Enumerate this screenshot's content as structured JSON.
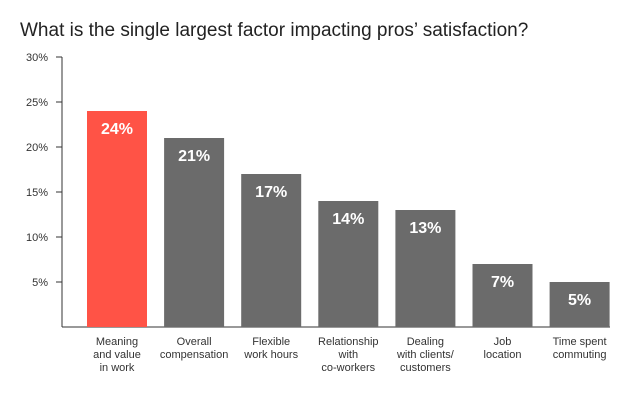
{
  "chart_data": {
    "type": "bar",
    "title": "What is the single largest factor impacting pros’ satisfaction?",
    "categories": [
      [
        "Meaning",
        "and value",
        "in work"
      ],
      [
        "Overall",
        "compensation"
      ],
      [
        "Flexible",
        "work hours"
      ],
      [
        "Relationship",
        "with",
        "co-workers"
      ],
      [
        "Dealing",
        "with clients/",
        "customers"
      ],
      [
        "Job",
        "location"
      ],
      [
        "Time spent",
        "commuting"
      ]
    ],
    "values": [
      24,
      21,
      17,
      14,
      13,
      7,
      5
    ],
    "data_labels": [
      "24%",
      "21%",
      "17%",
      "14%",
      "13%",
      "7%",
      "5%"
    ],
    "ylim": [
      0,
      30
    ],
    "yticks": [
      5,
      10,
      15,
      20,
      25,
      30
    ],
    "ytick_labels": [
      "5%",
      "10%",
      "15%",
      "20%",
      "25%",
      "30%"
    ],
    "grid": false,
    "colors": {
      "highlight": "#ff5346",
      "bar": "#6b6b6b",
      "axis": "#333333"
    },
    "highlight_index": 0
  }
}
